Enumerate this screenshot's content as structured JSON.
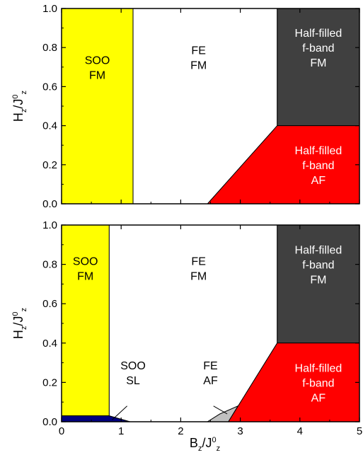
{
  "chart_data": [
    {
      "type": "area",
      "panel": "top",
      "title": "",
      "xlabel": "",
      "ylabel": {
        "base": "H",
        "sub": "z",
        "slash": "/J",
        "sup": "0",
        "sub2": "z"
      },
      "xlim": [
        0,
        5
      ],
      "ylim": [
        0,
        1
      ],
      "x_ticks": [
        0,
        1,
        2,
        3,
        4,
        5
      ],
      "y_ticks": [
        "0.0",
        "0.2",
        "0.4",
        "0.6",
        "0.8",
        "1.0"
      ],
      "y_tick_values": [
        0,
        0.2,
        0.4,
        0.6,
        0.8,
        1.0
      ],
      "show_x_tick_labels": false,
      "regions": [
        {
          "key": "soo_fm",
          "lines": [
            "SOO",
            "FM"
          ],
          "fill": "#ffff00",
          "text_color": "#000000",
          "polygon": [
            [
              0,
              0
            ],
            [
              1.2,
              0
            ],
            [
              1.2,
              1
            ],
            [
              0,
              1
            ]
          ],
          "label_at": [
            0.6,
            0.7
          ]
        },
        {
          "key": "fe_fm",
          "lines": [
            "FE",
            "FM"
          ],
          "fill": "#ffffff",
          "text_color": "#000000",
          "polygon": [
            [
              1.2,
              0
            ],
            [
              2.45,
              0
            ],
            [
              3.62,
              0.4
            ],
            [
              3.62,
              1
            ],
            [
              1.2,
              1
            ]
          ],
          "label_at": [
            2.3,
            0.75
          ]
        },
        {
          "key": "hf_fm",
          "lines": [
            "Half-filled",
            "f-band",
            "FM"
          ],
          "fill": "#404040",
          "text_color": "#ffffff",
          "polygon": [
            [
              3.62,
              0.4
            ],
            [
              5,
              0.4
            ],
            [
              5,
              1
            ],
            [
              3.62,
              1
            ]
          ],
          "label_at": [
            4.31,
            0.8
          ]
        },
        {
          "key": "hf_af",
          "lines": [
            "Half-filled",
            "f-band",
            "AF"
          ],
          "fill": "#ff0000",
          "text_color": "#ffffff",
          "polygon": [
            [
              2.45,
              0
            ],
            [
              5,
              0
            ],
            [
              5,
              0.4
            ],
            [
              3.62,
              0.4
            ]
          ],
          "label_at": [
            4.31,
            0.2
          ]
        }
      ]
    },
    {
      "type": "area",
      "panel": "bottom",
      "title": "",
      "xlabel": {
        "base": "B",
        "sub": "z",
        "slash": "/J",
        "sup": "0",
        "sub2": "z"
      },
      "ylabel": {
        "base": "H",
        "sub": "z",
        "slash": "/J",
        "sup": "0",
        "sub2": "z"
      },
      "xlim": [
        0,
        5
      ],
      "ylim": [
        0,
        1
      ],
      "x_ticks": [
        "0",
        "1",
        "2",
        "3",
        "4",
        "5"
      ],
      "x_tick_values": [
        0,
        1,
        2,
        3,
        4,
        5
      ],
      "y_ticks": [
        "0.0",
        "0.2",
        "0.4",
        "0.6",
        "0.8",
        "1.0"
      ],
      "y_tick_values": [
        0,
        0.2,
        0.4,
        0.6,
        0.8,
        1.0
      ],
      "show_x_tick_labels": true,
      "regions": [
        {
          "key": "soo_fm",
          "lines": [
            "SOO",
            "FM"
          ],
          "fill": "#ffff00",
          "text_color": "#000000",
          "polygon": [
            [
              0,
              0.03
            ],
            [
              0.8,
              0.03
            ],
            [
              0.8,
              1
            ],
            [
              0,
              1
            ]
          ],
          "label_at": [
            0.4,
            0.78
          ]
        },
        {
          "key": "soo_sl",
          "lines": [],
          "fill": "#000080",
          "text_color": "#000000",
          "polygon": [
            [
              0,
              0
            ],
            [
              1.15,
              0
            ],
            [
              0.8,
              0.03
            ],
            [
              0,
              0.03
            ]
          ]
        },
        {
          "key": "fe_fm",
          "lines": [
            "FE",
            "FM"
          ],
          "fill": "#ffffff",
          "text_color": "#000000",
          "polygon": [
            [
              0.8,
              0.03
            ],
            [
              1.15,
              0
            ],
            [
              2.45,
              0
            ],
            [
              2.66,
              0.04
            ],
            [
              2.8,
              0
            ],
            [
              3.62,
              0.4
            ],
            [
              3.62,
              1
            ],
            [
              0.8,
              1
            ]
          ],
          "label_at": [
            2.3,
            0.78
          ]
        },
        {
          "key": "fe_af",
          "lines": [],
          "fill": "#c0c0c0",
          "text_color": "#000000",
          "polygon": [
            [
              2.45,
              0
            ],
            [
              2.8,
              0
            ],
            [
              2.96,
              0.08
            ],
            [
              2.66,
              0.04
            ]
          ]
        },
        {
          "key": "hf_fm",
          "lines": [
            "Half-filled",
            "f-band",
            "FM"
          ],
          "fill": "#404040",
          "text_color": "#ffffff",
          "polygon": [
            [
              3.62,
              0.4
            ],
            [
              5,
              0.4
            ],
            [
              5,
              1
            ],
            [
              3.62,
              1
            ]
          ],
          "label_at": [
            4.31,
            0.8
          ]
        },
        {
          "key": "hf_af",
          "lines": [
            "Half-filled",
            "f-band",
            "AF"
          ],
          "fill": "#ff0000",
          "text_color": "#ffffff",
          "polygon": [
            [
              2.8,
              0
            ],
            [
              5,
              0
            ],
            [
              5,
              0.4
            ],
            [
              3.62,
              0.4
            ]
          ],
          "label_at": [
            4.31,
            0.2
          ]
        }
      ],
      "annotations": [
        {
          "key": "soo_sl_label",
          "lines": [
            "SOO",
            "SL"
          ],
          "label_at": [
            1.2,
            0.25
          ],
          "pointer_from": [
            1.1,
            0.08
          ],
          "pointer_to": [
            0.85,
            0.01
          ]
        },
        {
          "key": "fe_af_label",
          "lines": [
            "FE",
            "AF"
          ],
          "label_at": [
            2.5,
            0.25
          ],
          "pointer_from": [
            2.55,
            0.08
          ],
          "pointer_to": [
            2.78,
            0.04
          ]
        }
      ]
    }
  ]
}
